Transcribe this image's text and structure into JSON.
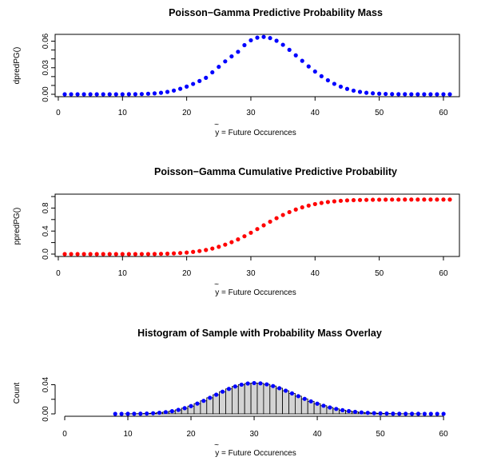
{
  "chart_data": [
    {
      "type": "scatter",
      "title": "Poisson−Gamma Predictive Probability Mass",
      "ylabel": "dpredPG()",
      "xlabel_tilde": "~",
      "xlabel_var": "y",
      "xlabel_rest": " = Future Occurences",
      "xlim": [
        1,
        61
      ],
      "ylim": [
        0,
        0.065
      ],
      "xticks": [
        0,
        10,
        20,
        30,
        40,
        50,
        60
      ],
      "yticks": [
        0.0,
        0.01,
        0.02,
        0.03,
        0.04,
        0.05,
        0.06
      ],
      "ytick_labels": [
        "0.00",
        "",
        "0.03",
        "",
        "0.06"
      ],
      "ytick_label_values": [
        0.0,
        0.015,
        0.03,
        0.045,
        0.06
      ],
      "color": "#0000ff",
      "frame": true,
      "x": [
        1,
        2,
        3,
        4,
        5,
        6,
        7,
        8,
        9,
        10,
        11,
        12,
        13,
        14,
        15,
        16,
        17,
        18,
        19,
        20,
        21,
        22,
        23,
        24,
        25,
        26,
        27,
        28,
        29,
        30,
        31,
        32,
        33,
        34,
        35,
        36,
        37,
        38,
        39,
        40,
        41,
        42,
        43,
        44,
        45,
        46,
        47,
        48,
        49,
        50,
        51,
        52,
        53,
        54,
        55,
        56,
        57,
        58,
        59,
        60,
        61
      ],
      "values": [
        0.0,
        0.0,
        0.0,
        0.0,
        0.0,
        0.0,
        0.0,
        0.0,
        0.0,
        0.0,
        0.0001,
        0.0001,
        0.0003,
        0.0006,
        0.001,
        0.0017,
        0.0027,
        0.0042,
        0.0062,
        0.0087,
        0.0117,
        0.015,
        0.0186,
        0.0248,
        0.031,
        0.0372,
        0.0428,
        0.048,
        0.0555,
        0.061,
        0.064,
        0.0648,
        0.0635,
        0.0605,
        0.0559,
        0.0502,
        0.044,
        0.0378,
        0.0315,
        0.0257,
        0.0204,
        0.0158,
        0.0118,
        0.0086,
        0.0061,
        0.0041,
        0.0027,
        0.0017,
        0.0011,
        0.0007,
        0.0004,
        0.0002,
        0.0001,
        0.0001,
        0.0,
        0.0,
        0.0,
        0.0,
        0.0,
        0.0,
        0.0
      ]
    },
    {
      "type": "scatter",
      "title": "Poisson−Gamma Cumulative Predictive Probability",
      "ylabel": "ppredPG()",
      "xlabel_tilde": "~",
      "xlabel_var": "y",
      "xlabel_rest": " = Future Occurences",
      "xlim": [
        1,
        61
      ],
      "ylim": [
        0,
        1
      ],
      "xticks": [
        0,
        10,
        20,
        30,
        40,
        50,
        60
      ],
      "yticks": [
        0.0,
        0.2,
        0.4,
        0.6,
        0.8,
        1.0
      ],
      "ytick_labels": [
        "0.0",
        "0.4",
        "0.8"
      ],
      "ytick_label_values": [
        0.0,
        0.4,
        0.8
      ],
      "color": "#ff0000",
      "frame": true,
      "x": [
        1,
        2,
        3,
        4,
        5,
        6,
        7,
        8,
        9,
        10,
        11,
        12,
        13,
        14,
        15,
        16,
        17,
        18,
        19,
        20,
        21,
        22,
        23,
        24,
        25,
        26,
        27,
        28,
        29,
        30,
        31,
        32,
        33,
        34,
        35,
        36,
        37,
        38,
        39,
        40,
        41,
        42,
        43,
        44,
        45,
        46,
        47,
        48,
        49,
        50,
        51,
        52,
        53,
        54,
        55,
        56,
        57,
        58,
        59,
        60,
        61
      ],
      "values": [
        0.0,
        0.0,
        0.0,
        0.0,
        0.0,
        0.0,
        0.0,
        0.0,
        0.0,
        0.0,
        0.0,
        0.0,
        0.001,
        0.001,
        0.002,
        0.004,
        0.007,
        0.012,
        0.018,
        0.026,
        0.038,
        0.053,
        0.071,
        0.096,
        0.127,
        0.164,
        0.207,
        0.255,
        0.31,
        0.371,
        0.435,
        0.5,
        0.563,
        0.624,
        0.68,
        0.73,
        0.774,
        0.812,
        0.843,
        0.869,
        0.889,
        0.905,
        0.917,
        0.926,
        0.933,
        0.937,
        0.94,
        0.942,
        0.944,
        0.945,
        0.946,
        0.947,
        0.947,
        0.948,
        0.948,
        0.948,
        0.948,
        0.948,
        0.948,
        0.948,
        0.948
      ]
    },
    {
      "type": "bar",
      "title": "Histogram of Sample with Probability Mass Overlay",
      "ylabel": "Count",
      "xlabel_tilde": "~",
      "xlabel_var": "y",
      "xlabel_rest": " = Future Occurences",
      "xlim": [
        0,
        61
      ],
      "ylim": [
        0,
        0.068
      ],
      "xticks": [
        0,
        10,
        20,
        30,
        40,
        50,
        60
      ],
      "yticks": [
        0.0,
        0.02,
        0.04
      ],
      "ytick_labels": [
        "0.00",
        "0.04"
      ],
      "ytick_label_values": [
        0.0,
        0.04
      ],
      "bar_fill": "#d3d3d3",
      "overlay_color": "#0000ff",
      "frame": false,
      "x": [
        8,
        9,
        10,
        11,
        12,
        13,
        14,
        15,
        16,
        17,
        18,
        19,
        20,
        21,
        22,
        23,
        24,
        25,
        26,
        27,
        28,
        29,
        30,
        31,
        32,
        33,
        34,
        35,
        36,
        37,
        38,
        39,
        40,
        41,
        42,
        43,
        44,
        45,
        46,
        47,
        48,
        49,
        50,
        51,
        52,
        53,
        54,
        55,
        56,
        57,
        58,
        59,
        60
      ],
      "values": [
        0.0,
        0.0,
        0.0001,
        0.0002,
        0.0003,
        0.0005,
        0.0009,
        0.0015,
        0.0024,
        0.0037,
        0.0055,
        0.0078,
        0.0107,
        0.0141,
        0.0179,
        0.0221,
        0.0263,
        0.0305,
        0.0343,
        0.0376,
        0.0401,
        0.0417,
        0.0423,
        0.0419,
        0.0405,
        0.0382,
        0.0352,
        0.0318,
        0.0281,
        0.0243,
        0.0206,
        0.0172,
        0.014,
        0.0112,
        0.0088,
        0.0068,
        0.0051,
        0.0038,
        0.0028,
        0.002,
        0.0014,
        0.001,
        0.0007,
        0.0005,
        0.0003,
        0.0002,
        0.0001,
        0.0001,
        0.0001,
        0.0,
        0.0,
        0.0,
        0.0
      ]
    }
  ]
}
